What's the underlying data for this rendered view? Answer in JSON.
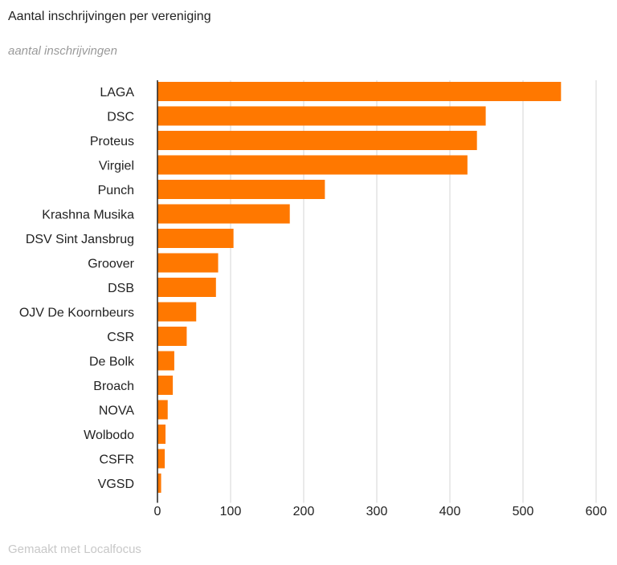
{
  "header": {
    "title": "Aantal inschrijvingen per vereniging",
    "subtitle": "aantal inschrijvingen"
  },
  "footer": {
    "credit": "Gemaakt met Localfocus"
  },
  "colors": {
    "bar": "#ff7800",
    "grid": "#d4d4d4",
    "axis": "#222222"
  },
  "chart_data": {
    "type": "bar",
    "orientation": "horizontal",
    "title": "Aantal inschrijvingen per vereniging",
    "subtitle": "aantal inschrijvingen",
    "categories": [
      "LAGA",
      "DSC",
      "Proteus",
      "Virgiel",
      "Punch",
      "Krashna Musika",
      "DSV Sint Jansbrug",
      "Groover",
      "DSB",
      "OJV De Koornbeurs",
      "CSR",
      "De Bolk",
      "Broach",
      "NOVA",
      "Wolbodo",
      "CSFR",
      "VGSD"
    ],
    "values": [
      552,
      449,
      437,
      424,
      229,
      181,
      104,
      83,
      80,
      53,
      40,
      23,
      21,
      14,
      11,
      10,
      5
    ],
    "xlim": [
      0,
      600
    ],
    "xticks": [
      0,
      100,
      200,
      300,
      400,
      500,
      600
    ],
    "xlabel": "",
    "ylabel": "",
    "grid": true,
    "legend": "none"
  }
}
